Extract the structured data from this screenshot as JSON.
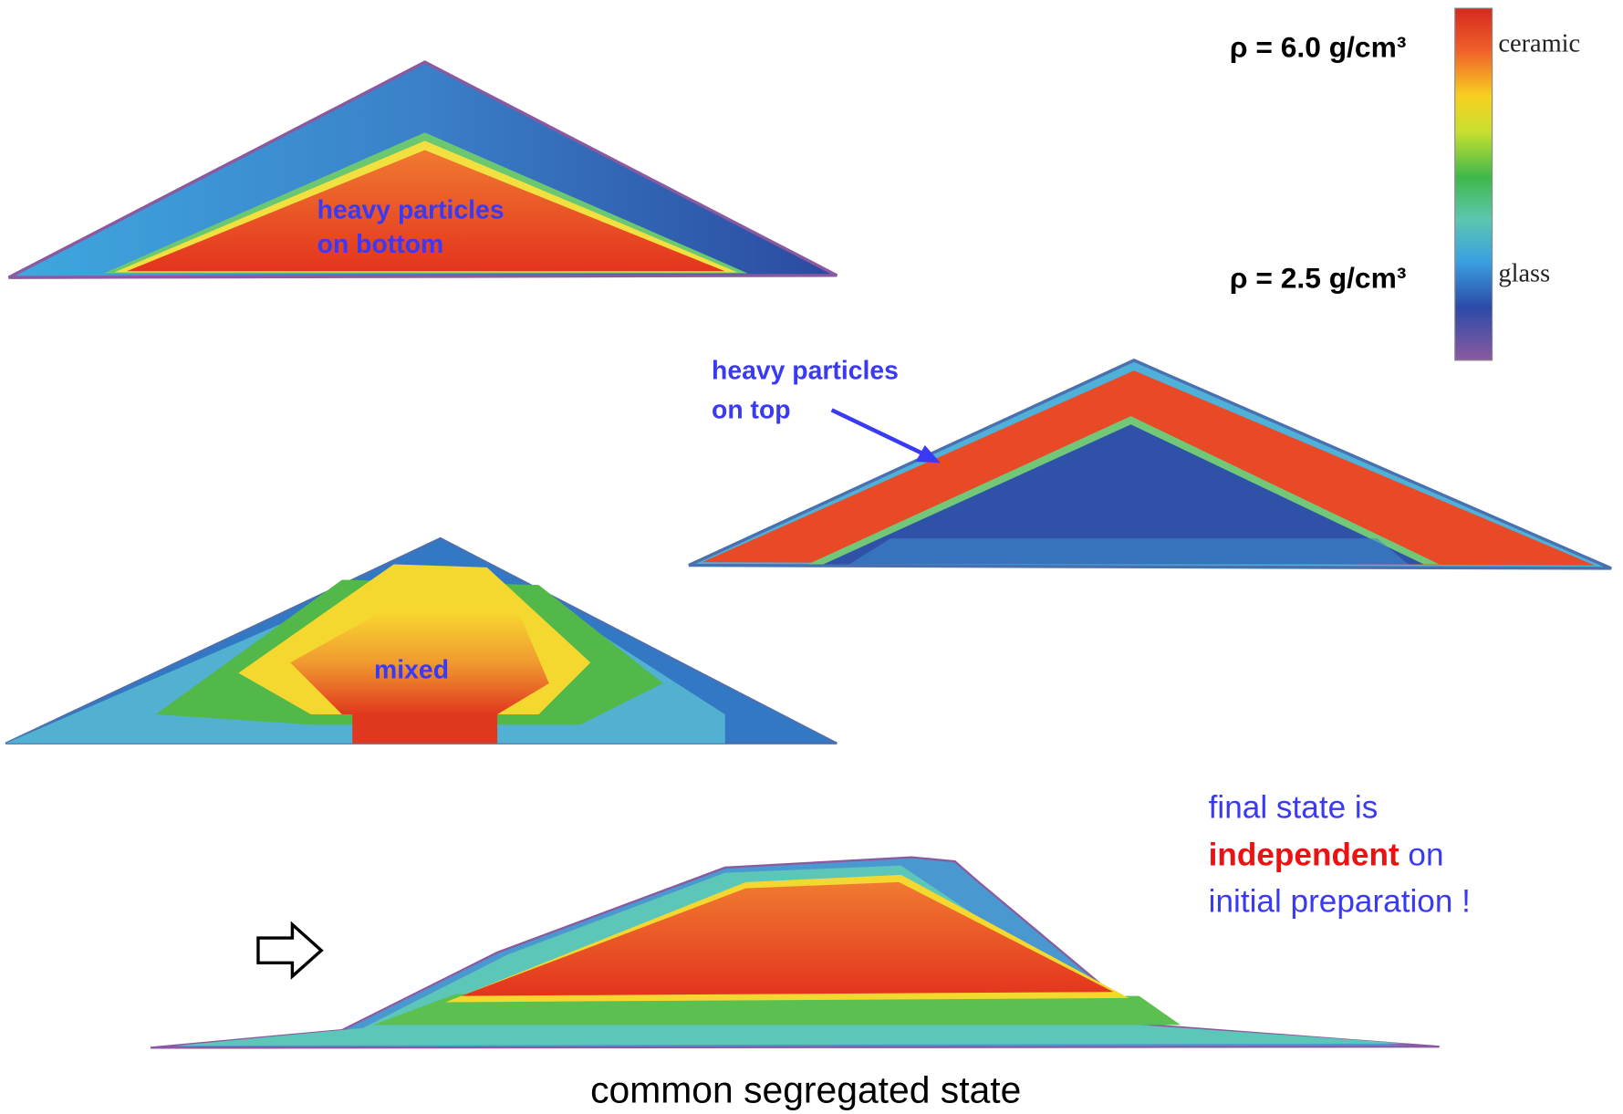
{
  "colorbar": {
    "top_density": "ρ = 6.0 g/cm³",
    "bottom_density": "ρ = 2.5 g/cm³",
    "top_label": "ceramic",
    "bottom_label": "glass"
  },
  "panels": [
    {
      "label_lines": [
        "heavy particles",
        "on bottom"
      ]
    },
    {
      "label_lines": [
        "heavy particles",
        "on top"
      ]
    },
    {
      "label_lines": [
        "mixed"
      ]
    }
  ],
  "note": {
    "line1": "final state is",
    "emphasis": "independent",
    "line2_rest": "on",
    "line3": "initial preparation !"
  },
  "caption": "common segregated state"
}
